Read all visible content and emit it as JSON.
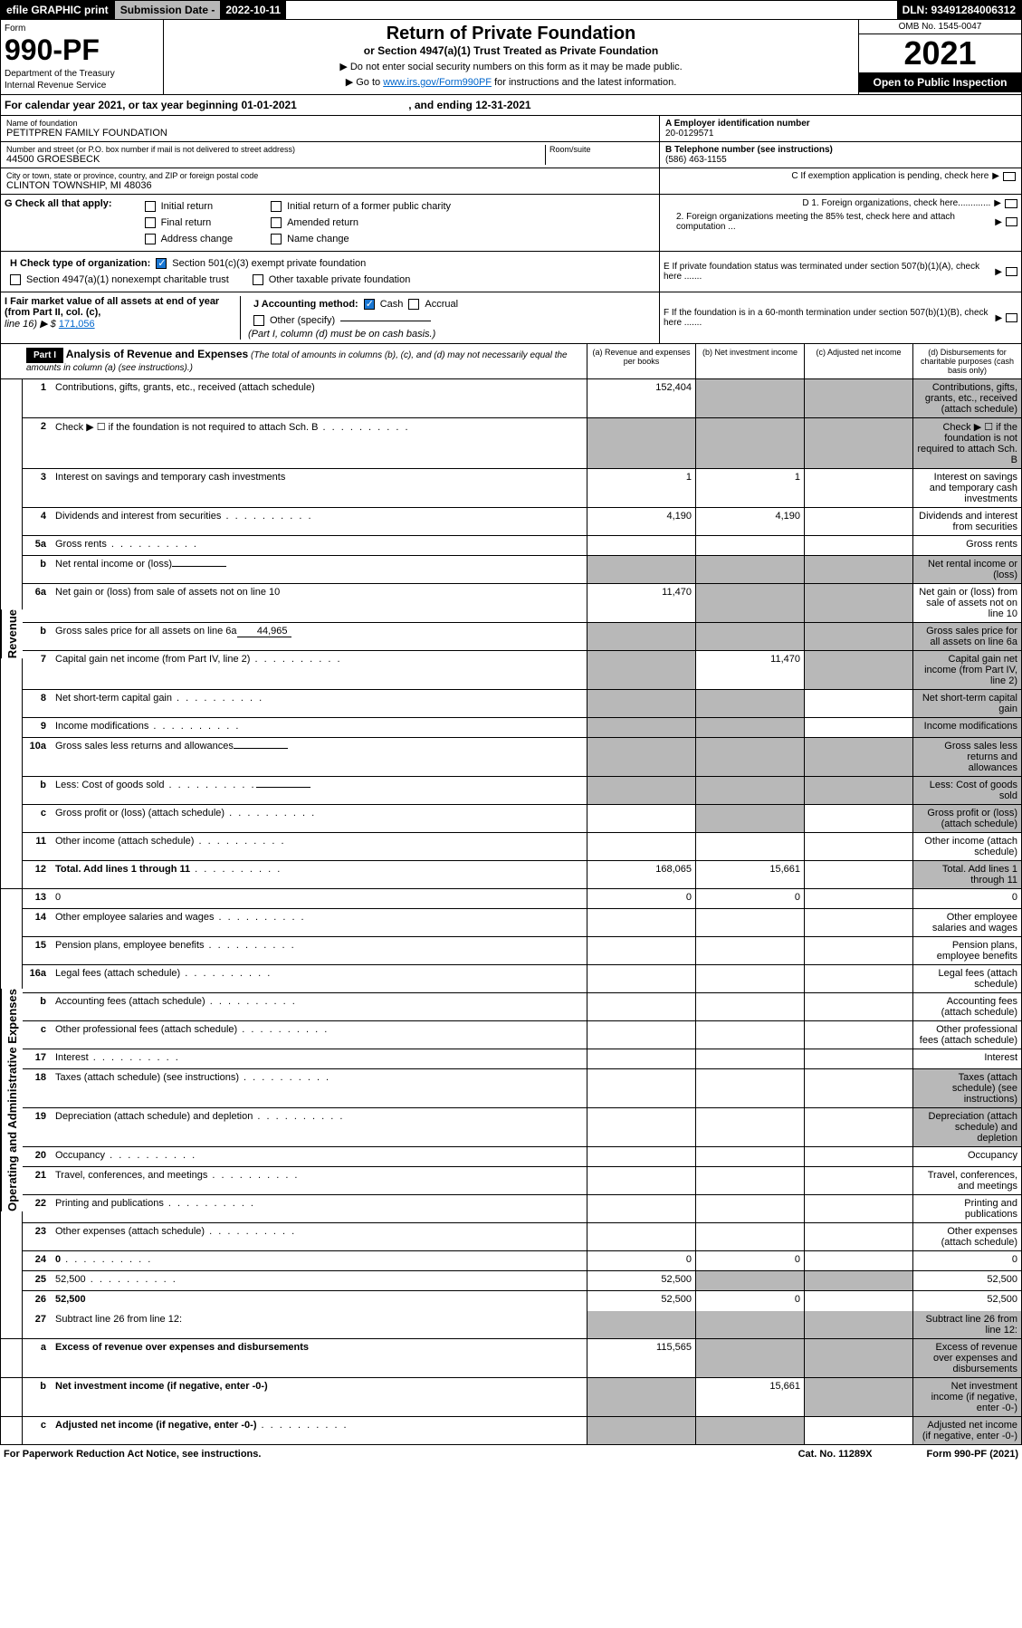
{
  "topbar": {
    "efile": "efile GRAPHIC print",
    "subdate_label": "Submission Date - ",
    "subdate": "2022-10-11",
    "dln": "DLN: 93491284006312"
  },
  "header": {
    "form_label": "Form",
    "form_num": "990-PF",
    "dept": "Department of the Treasury",
    "irs": "Internal Revenue Service",
    "title": "Return of Private Foundation",
    "subtitle": "or Section 4947(a)(1) Trust Treated as Private Foundation",
    "note1": "▶ Do not enter social security numbers on this form as it may be made public.",
    "note2_pre": "▶ Go to ",
    "note2_link": "www.irs.gov/Form990PF",
    "note2_post": " for instructions and the latest information.",
    "omb": "OMB No. 1545-0047",
    "year": "2021",
    "open": "Open to Public Inspection"
  },
  "calyear": {
    "pre": "For calendar year 2021, or tax year beginning ",
    "begin": "01-01-2021",
    "mid": " , and ending ",
    "end": "12-31-2021"
  },
  "entity": {
    "name_label": "Name of foundation",
    "name": "PETITPREN FAMILY FOUNDATION",
    "addr_label": "Number and street (or P.O. box number if mail is not delivered to street address)",
    "addr": "44500 GROESBECK",
    "room_label": "Room/suite",
    "city_label": "City or town, state or province, country, and ZIP or foreign postal code",
    "city": "CLINTON TOWNSHIP, MI  48036",
    "a_label": "A Employer identification number",
    "a_val": "20-0129571",
    "b_label": "B Telephone number (see instructions)",
    "b_val": "(586) 463-1155",
    "c_label": "C If exemption application is pending, check here",
    "d1": "D 1. Foreign organizations, check here.............",
    "d2": "2. Foreign organizations meeting the 85% test, check here and attach computation ...",
    "e": "E  If private foundation status was terminated under section 507(b)(1)(A), check here .......",
    "f": "F  If the foundation is in a 60-month termination under section 507(b)(1)(B), check here ......."
  },
  "g": {
    "label": "G Check all that apply:",
    "initial": "Initial return",
    "initial_former": "Initial return of a former public charity",
    "final": "Final return",
    "amended": "Amended return",
    "addr_change": "Address change",
    "name_change": "Name change"
  },
  "h": {
    "label": "H Check type of organization:",
    "s501": "Section 501(c)(3) exempt private foundation",
    "s4947": "Section 4947(a)(1) nonexempt charitable trust",
    "other_tax": "Other taxable private foundation"
  },
  "i": {
    "label": "I Fair market value of all assets at end of year (from Part II, col. (c),",
    "line16": "line 16) ▶ $",
    "val": "171,056"
  },
  "j": {
    "label": "J Accounting method:",
    "cash": "Cash",
    "accrual": "Accrual",
    "other": "Other (specify)",
    "note": "(Part I, column (d) must be on cash basis.)"
  },
  "part1": {
    "hdr": "Part I",
    "title": "Analysis of Revenue and Expenses",
    "sub": " (The total of amounts in columns (b), (c), and (d) may not necessarily equal the amounts in column (a) (see instructions).)",
    "col_a": "(a) Revenue and expenses per books",
    "col_b": "(b) Net investment income",
    "col_c": "(c) Adjusted net income",
    "col_d": "(d) Disbursements for charitable purposes (cash basis only)"
  },
  "side_labels": {
    "revenue": "Revenue",
    "expenses": "Operating and Administrative Expenses"
  },
  "lines": {
    "1": {
      "n": "1",
      "d": "Contributions, gifts, grants, etc., received (attach schedule)",
      "a": "152,404",
      "grey": [
        "b",
        "c",
        "d"
      ]
    },
    "2": {
      "n": "2",
      "d": "Check ▶ ☐ if the foundation is not required to attach Sch. B",
      "dots": true,
      "grey": [
        "a",
        "b",
        "c",
        "d"
      ]
    },
    "3": {
      "n": "3",
      "d": "Interest on savings and temporary cash investments",
      "a": "1",
      "b": "1"
    },
    "4": {
      "n": "4",
      "d": "Dividends and interest from securities",
      "dots": true,
      "a": "4,190",
      "b": "4,190"
    },
    "5a": {
      "n": "5a",
      "d": "Gross rents",
      "dots": true
    },
    "5b": {
      "n": "b",
      "d": "Net rental income or (loss)",
      "inline": "",
      "grey": [
        "a",
        "b",
        "c",
        "d"
      ]
    },
    "6a": {
      "n": "6a",
      "d": "Net gain or (loss) from sale of assets not on line 10",
      "a": "11,470",
      "grey": [
        "b",
        "c"
      ]
    },
    "6b": {
      "n": "b",
      "d": "Gross sales price for all assets on line 6a",
      "inline": "44,965",
      "grey": [
        "a",
        "b",
        "c",
        "d"
      ]
    },
    "7": {
      "n": "7",
      "d": "Capital gain net income (from Part IV, line 2)",
      "dots": true,
      "b": "11,470",
      "grey": [
        "a",
        "c",
        "d"
      ]
    },
    "8": {
      "n": "8",
      "d": "Net short-term capital gain",
      "dots": true,
      "grey": [
        "a",
        "b",
        "d"
      ]
    },
    "9": {
      "n": "9",
      "d": "Income modifications",
      "dots": true,
      "grey": [
        "a",
        "b",
        "d"
      ]
    },
    "10a": {
      "n": "10a",
      "d": "Gross sales less returns and allowances",
      "inline": "",
      "grey": [
        "a",
        "b",
        "c",
        "d"
      ]
    },
    "10b": {
      "n": "b",
      "d": "Less: Cost of goods sold",
      "dots": true,
      "inline": "",
      "grey": [
        "a",
        "b",
        "c",
        "d"
      ]
    },
    "10c": {
      "n": "c",
      "d": "Gross profit or (loss) (attach schedule)",
      "dots": true,
      "grey": [
        "b",
        "d"
      ]
    },
    "11": {
      "n": "11",
      "d": "Other income (attach schedule)",
      "dots": true
    },
    "12": {
      "n": "12",
      "d": "Total. Add lines 1 through 11",
      "dots": true,
      "bold": true,
      "a": "168,065",
      "b": "15,661",
      "grey": [
        "d"
      ]
    },
    "13": {
      "n": "13",
      "d": "0",
      "a": "0",
      "b": "0"
    },
    "14": {
      "n": "14",
      "d": "Other employee salaries and wages",
      "dots": true
    },
    "15": {
      "n": "15",
      "d": "Pension plans, employee benefits",
      "dots": true
    },
    "16a": {
      "n": "16a",
      "d": "Legal fees (attach schedule)",
      "dots": true
    },
    "16b": {
      "n": "b",
      "d": "Accounting fees (attach schedule)",
      "dots": true
    },
    "16c": {
      "n": "c",
      "d": "Other professional fees (attach schedule)",
      "dots": true
    },
    "17": {
      "n": "17",
      "d": "Interest",
      "dots": true
    },
    "18": {
      "n": "18",
      "d": "Taxes (attach schedule) (see instructions)",
      "dots": true,
      "grey": [
        "d"
      ]
    },
    "19": {
      "n": "19",
      "d": "Depreciation (attach schedule) and depletion",
      "dots": true,
      "grey": [
        "d"
      ]
    },
    "20": {
      "n": "20",
      "d": "Occupancy",
      "dots": true
    },
    "21": {
      "n": "21",
      "d": "Travel, conferences, and meetings",
      "dots": true
    },
    "22": {
      "n": "22",
      "d": "Printing and publications",
      "dots": true
    },
    "23": {
      "n": "23",
      "d": "Other expenses (attach schedule)",
      "dots": true
    },
    "24": {
      "n": "24",
      "d": "0",
      "dots": true,
      "bold": true,
      "a": "0",
      "b": "0"
    },
    "25": {
      "n": "25",
      "d": "52,500",
      "dots": true,
      "a": "52,500",
      "grey": [
        "b",
        "c"
      ]
    },
    "26": {
      "n": "26",
      "d": "52,500",
      "bold": true,
      "a": "52,500",
      "b": "0"
    },
    "27": {
      "n": "27",
      "d": "Subtract line 26 from line 12:",
      "grey": [
        "a",
        "b",
        "c",
        "d"
      ]
    },
    "27a": {
      "n": "a",
      "d": "Excess of revenue over expenses and disbursements",
      "bold": true,
      "a": "115,565",
      "grey": [
        "b",
        "c",
        "d"
      ]
    },
    "27b": {
      "n": "b",
      "d": "Net investment income (if negative, enter -0-)",
      "bold": true,
      "b": "15,661",
      "grey": [
        "a",
        "c",
        "d"
      ]
    },
    "27c": {
      "n": "c",
      "d": "Adjusted net income (if negative, enter -0-)",
      "bold": true,
      "dots": true,
      "grey": [
        "a",
        "b",
        "d"
      ]
    }
  },
  "footer": {
    "left": "For Paperwork Reduction Act Notice, see instructions.",
    "mid": "Cat. No. 11289X",
    "right": "Form 990-PF (2021)"
  }
}
